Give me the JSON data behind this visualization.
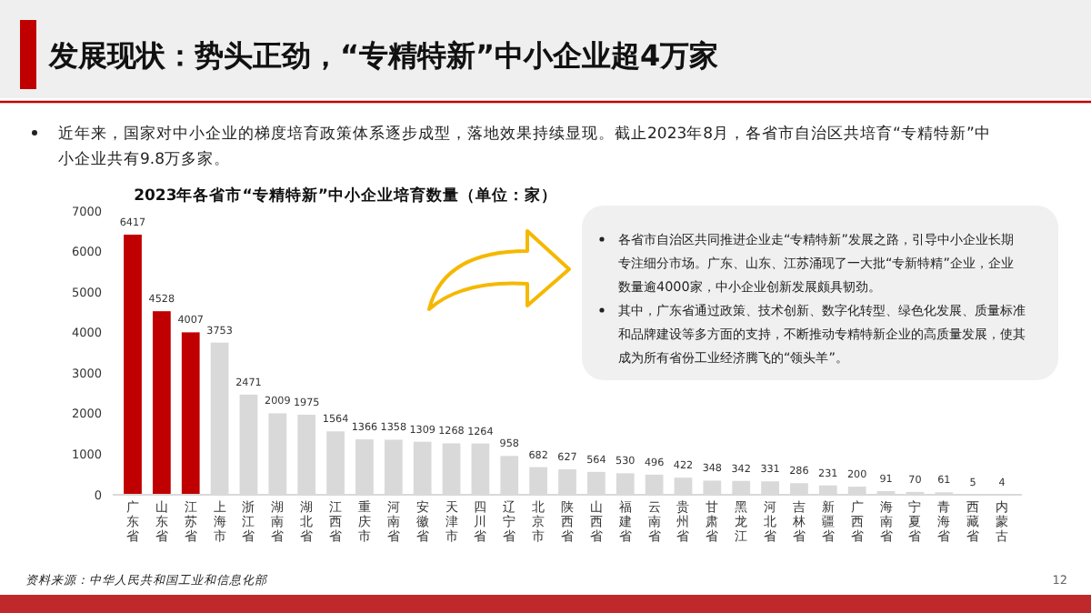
{
  "chart_data": {
    "type": "bar",
    "title": "发展现状：势头正劲，“专精特新”中小企业超4万家",
    "subtitle": "2023年各省市“专精特新”中小企业培育数量（单位：家）",
    "categories": [
      "广东省",
      "山东省",
      "江苏省",
      "上海市",
      "浙江省",
      "湖南省",
      "湖北省",
      "江西省",
      "重庆市",
      "河南省",
      "安徽省",
      "天津市",
      "四川省",
      "辽宁省",
      "北京市",
      "陕西省",
      "山西省",
      "福建省",
      "云南省",
      "贵州省",
      "甘肃省",
      "黑龙江",
      "河北省",
      "吉林省",
      "新疆省",
      "广西省",
      "海南省",
      "宁夏省",
      "青海省",
      "西藏省",
      "内蒙古"
    ],
    "values": [
      6417,
      4528,
      4007,
      3753,
      2471,
      2009,
      1975,
      1564,
      1366,
      1358,
      1309,
      1268,
      1264,
      958,
      682,
      627,
      564,
      530,
      496,
      422,
      348,
      342,
      331,
      286,
      231,
      200,
      91,
      70,
      61,
      5,
      4
    ],
    "colors": [
      "#c00000",
      "#c00000",
      "#c00000",
      "#d9d9d9",
      "#d9d9d9",
      "#d9d9d9",
      "#d9d9d9",
      "#d9d9d9",
      "#d9d9d9",
      "#d9d9d9",
      "#d9d9d9",
      "#d9d9d9",
      "#d9d9d9",
      "#d9d9d9",
      "#d9d9d9",
      "#d9d9d9",
      "#d9d9d9",
      "#d9d9d9",
      "#d9d9d9",
      "#d9d9d9",
      "#d9d9d9",
      "#d9d9d9",
      "#d9d9d9",
      "#d9d9d9",
      "#d9d9d9",
      "#d9d9d9",
      "#d9d9d9",
      "#d9d9d9",
      "#d9d9d9",
      "#d9d9d9",
      "#d9d9d9"
    ],
    "ylim": [
      0,
      7000
    ],
    "yticks": [
      0,
      1000,
      2000,
      3000,
      4000,
      5000,
      6000,
      7000
    ],
    "grid": false,
    "data_labels": true,
    "annotations": [
      "近年来，国家对中小企业的梯度培育政策体系逐步成型，落地效果持续显现。截止2023年8月，各省市自治区共培育“专精特新”中小企业共有9.8万多家。",
      "各省市自治区共同推进企业走“专精特新”发展之路，引导中小企业长期专注细分市场。广东、山东、江苏涌现了一大批“专新特精”企业，企业数量逾4000家，中小企业创新发展颇具韧劲。",
      "其中，广东省通过政策、技术创新、数字化转型、绿色化发展、质量标准和品牌建设等多方面的支持，不断推动专精特新企业的高质量发展，使其成为所有省份工业经济腾飞的“领头羊”。",
      "资料来源：中华人民共和国工业和信息化部",
      "12"
    ]
  }
}
